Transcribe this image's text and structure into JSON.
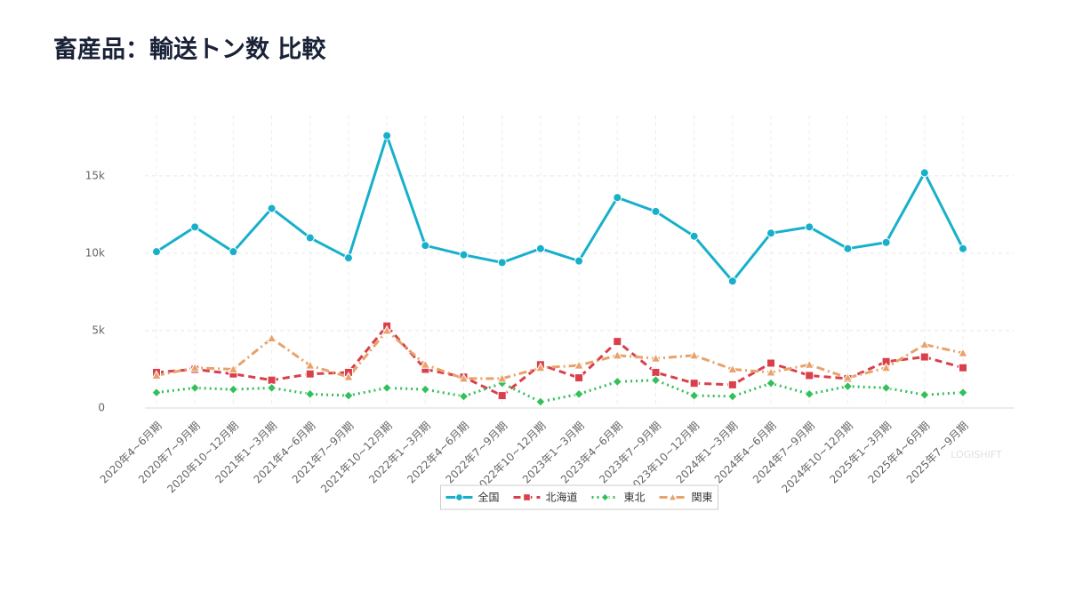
{
  "chart_data": {
    "type": "line",
    "title": "畜産品：輸送トン数 比較",
    "categories": [
      "2020年4~6月期",
      "2020年7~9月期",
      "2020年10~12月期",
      "2021年1~3月期",
      "2021年4~6月期",
      "2021年7~9月期",
      "2021年10~12月期",
      "2022年1~3月期",
      "2022年4~6月期",
      "2022年7~9月期",
      "2022年10~12月期",
      "2023年1~3月期",
      "2023年4~6月期",
      "2023年7~9月期",
      "2023年10~12月期",
      "2024年1~3月期",
      "2024年4~6月期",
      "2024年7~9月期",
      "2024年10~12月期",
      "2025年1~3月期",
      "2025年4~6月期",
      "2025年7~9月期"
    ],
    "series": [
      {
        "name": "全国",
        "color": "#17b0cb",
        "dash": "solid",
        "marker": "circle",
        "values": [
          10100,
          11700,
          10100,
          12900,
          11000,
          9700,
          17600,
          10500,
          9900,
          9400,
          10300,
          9500,
          13600,
          12700,
          11100,
          8200,
          11300,
          11700,
          10300,
          10700,
          15200,
          10300
        ]
      },
      {
        "name": "北海道",
        "color": "#d9404b",
        "dash": "dash",
        "marker": "square",
        "values": [
          2300,
          2500,
          2200,
          1800,
          2200,
          2300,
          5300,
          2500,
          2000,
          800,
          2800,
          1950,
          4300,
          2300,
          1600,
          1500,
          2900,
          2100,
          1900,
          3000,
          3300,
          2600
        ]
      },
      {
        "name": "東北",
        "color": "#33c05a",
        "dash": "dot",
        "marker": "diamond",
        "values": [
          1000,
          1300,
          1200,
          1300,
          900,
          800,
          1300,
          1200,
          750,
          1600,
          400,
          900,
          1700,
          1800,
          800,
          750,
          1600,
          900,
          1400,
          1300,
          850,
          1000
        ]
      },
      {
        "name": "関東",
        "color": "#e8a26a",
        "dash": "dashdot",
        "marker": "triangle",
        "values": [
          2100,
          2600,
          2500,
          4500,
          2750,
          2000,
          5000,
          2800,
          1900,
          1900,
          2600,
          2750,
          3400,
          3200,
          3400,
          2500,
          2300,
          2800,
          1950,
          2600,
          4100,
          3550
        ]
      }
    ],
    "ylim": [
      0,
      18900
    ],
    "yticks": [
      0,
      {
        "value": 5000,
        "label": "5k"
      },
      {
        "value": 10000,
        "label": "10k"
      },
      {
        "value": 15000,
        "label": "15k"
      }
    ],
    "grid": true,
    "legend": "bottom",
    "watermark": "LOGISHIFT"
  }
}
